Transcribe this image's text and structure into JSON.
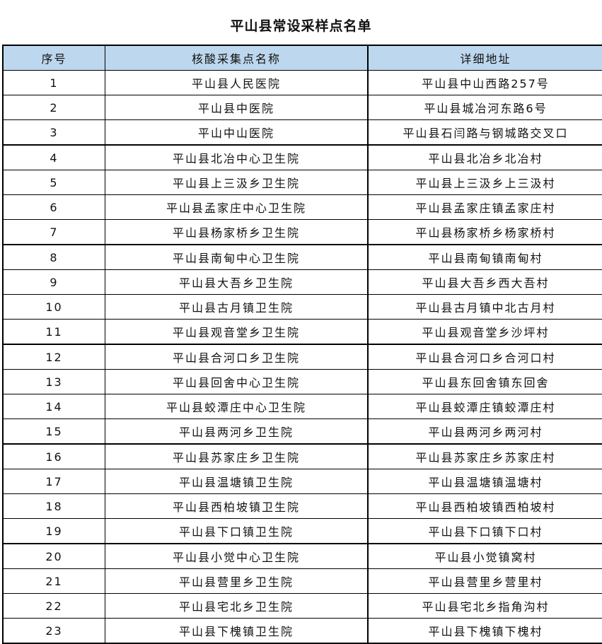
{
  "title": "平山县常设采样点名单",
  "header_color": "#bdd7ee",
  "columns": [
    "序号",
    "核酸采集点名称",
    "详细地址"
  ],
  "rows": [
    [
      "1",
      "平山县人民医院",
      "平山县中山西路257号"
    ],
    [
      "2",
      "平山县中医院",
      "平山县城冶河东路6号"
    ],
    [
      "3",
      "平山中山医院",
      "平山县石闫路与钢城路交叉口"
    ],
    [
      "4",
      "平山县北冶中心卫生院",
      "平山县北冶乡北冶村"
    ],
    [
      "5",
      "平山县上三汲乡卫生院",
      "平山县上三汲乡上三汲村"
    ],
    [
      "6",
      "平山县孟家庄中心卫生院",
      "平山县孟家庄镇孟家庄村"
    ],
    [
      "7",
      "平山县杨家桥乡卫生院",
      "平山县杨家桥乡杨家桥村"
    ],
    [
      "8",
      "平山县南甸中心卫生院",
      "平山县南甸镇南甸村"
    ],
    [
      "9",
      "平山县大吾乡卫生院",
      "平山县大吾乡西大吾村"
    ],
    [
      "10",
      "平山县古月镇卫生院",
      "平山县古月镇中北古月村"
    ],
    [
      "11",
      "平山县观音堂乡卫生院",
      "平山县观音堂乡沙坪村"
    ],
    [
      "12",
      "平山县合河口乡卫生院",
      "平山县合河口乡合河口村"
    ],
    [
      "13",
      "平山县回舍中心卫生院",
      "平山县东回舍镇东回舍"
    ],
    [
      "14",
      "平山县蛟潭庄中心卫生院",
      "平山县蛟潭庄镇蛟潭庄村"
    ],
    [
      "15",
      "平山县两河乡卫生院",
      "平山县两河乡两河村"
    ],
    [
      "16",
      "平山县苏家庄乡卫生院",
      "平山县苏家庄乡苏家庄村"
    ],
    [
      "17",
      "平山县温塘镇卫生院",
      "平山县温塘镇温塘村"
    ],
    [
      "18",
      "平山县西柏坡镇卫生院",
      "平山县西柏坡镇西柏坡村"
    ],
    [
      "19",
      "平山县下口镇卫生院",
      "平山县下口镇下口村"
    ],
    [
      "20",
      "平山县小觉中心卫生院",
      "平山县小觉镇窝村"
    ],
    [
      "21",
      "平山县营里乡卫生院",
      "平山县营里乡营里村"
    ],
    [
      "22",
      "平山县宅北乡卫生院",
      "平山县宅北乡指角沟村"
    ],
    [
      "23",
      "平山县下槐镇卫生院",
      "平山县下槐镇下槐村"
    ]
  ]
}
